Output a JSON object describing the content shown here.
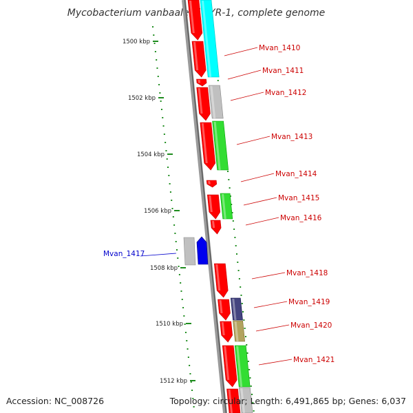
{
  "title": "Mycobacterium vanbaalenii PYR-1, complete genome",
  "accession_text": "Accession: NC_008726",
  "topology_text": "Topology: circular; Length: 6,491,865 bp; Genes: 6,037",
  "colors": {
    "backbone": "#8c8c8c",
    "tick": "#1e8c1e",
    "cds": "#ff0000",
    "trna": "#00ffff",
    "gray": "#c0c0c0",
    "green": "#33dd33",
    "blue": "#0000ee",
    "purple": "#44447f",
    "tan": "#b3a35f",
    "label_red": "#cc0000",
    "label_blue": "#0000cc"
  },
  "ticks": [
    "1500 kbp",
    "1502 kbp",
    "1504 kbp",
    "1506 kbp",
    "1508 kbp",
    "1510 kbp",
    "1512 kbp"
  ],
  "genes": [
    "Mvan_1410",
    "Mvan_1411",
    "Mvan_1412",
    "Mvan_1413",
    "Mvan_1414",
    "Mvan_1415",
    "Mvan_1416",
    "Mvan_1417",
    "Mvan_1418",
    "Mvan_1419",
    "Mvan_1420",
    "Mvan_1421"
  ]
}
